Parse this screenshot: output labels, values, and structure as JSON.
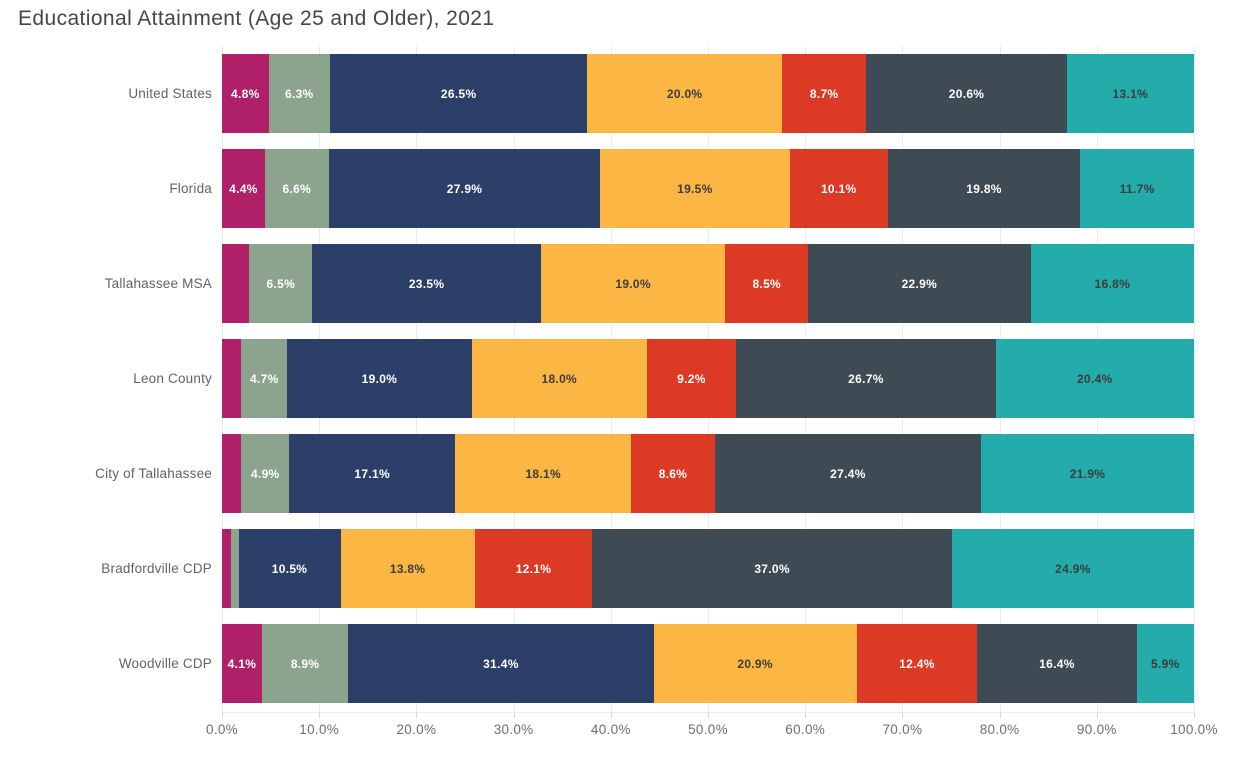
{
  "title": "Educational Attainment (Age 25 and Older), 2021",
  "chart_data": {
    "type": "bar",
    "orientation": "horizontal-stacked",
    "title": "Educational Attainment (Age 25 and Older), 2021",
    "xlabel": "",
    "ylabel": "",
    "xlim": [
      0,
      100
    ],
    "x_ticks": [
      "0.0%",
      "10.0%",
      "20.0%",
      "30.0%",
      "40.0%",
      "50.0%",
      "60.0%",
      "70.0%",
      "80.0%",
      "90.0%",
      "100.0%"
    ],
    "grid": true,
    "legend": "none",
    "categories": [
      "United States",
      "Florida",
      "Tallahassee MSA",
      "Leon County",
      "City of Tallahassee",
      "Bradfordville CDP",
      "Woodville CDP"
    ],
    "series": [
      {
        "name": "segment-1-magenta",
        "color": "#B02069",
        "text_color": "#FFFFFF",
        "values": [
          4.8,
          4.4,
          2.8,
          2.0,
          2.0,
          0.9,
          4.1
        ],
        "labels": [
          "4.8%",
          "4.4%",
          "",
          "",
          "",
          "",
          "4.1%"
        ]
      },
      {
        "name": "segment-2-sage",
        "color": "#8CA48E",
        "text_color": "#FFFFFF",
        "values": [
          6.3,
          6.6,
          6.5,
          4.7,
          4.9,
          0.8,
          8.9
        ],
        "labels": [
          "6.3%",
          "6.6%",
          "6.5%",
          "4.7%",
          "4.9%",
          "",
          "8.9%"
        ]
      },
      {
        "name": "segment-3-navy",
        "color": "#2C3F69",
        "text_color": "#FFFFFF",
        "values": [
          26.5,
          27.9,
          23.5,
          19.0,
          17.1,
          10.5,
          31.4
        ],
        "labels": [
          "26.5%",
          "27.9%",
          "23.5%",
          "19.0%",
          "17.1%",
          "10.5%",
          "31.4%"
        ]
      },
      {
        "name": "segment-4-amber",
        "color": "#FBB643",
        "text_color": "#3C3C3C",
        "values": [
          20.0,
          19.5,
          19.0,
          18.0,
          18.1,
          13.8,
          20.9
        ],
        "labels": [
          "20.0%",
          "19.5%",
          "19.0%",
          "18.0%",
          "18.1%",
          "13.8%",
          "20.9%"
        ]
      },
      {
        "name": "segment-5-red",
        "color": "#DC3A24",
        "text_color": "#FFFFFF",
        "values": [
          8.7,
          10.1,
          8.5,
          9.2,
          8.6,
          12.1,
          12.4
        ],
        "labels": [
          "8.7%",
          "10.1%",
          "8.5%",
          "9.2%",
          "8.6%",
          "12.1%",
          "12.4%"
        ]
      },
      {
        "name": "segment-6-slate",
        "color": "#3E4B55",
        "text_color": "#FFFFFF",
        "values": [
          20.6,
          19.8,
          22.9,
          26.7,
          27.4,
          37.0,
          16.4
        ],
        "labels": [
          "20.6%",
          "19.8%",
          "22.9%",
          "26.7%",
          "27.4%",
          "37.0%",
          "16.4%"
        ]
      },
      {
        "name": "segment-7-teal",
        "color": "#23ACA9",
        "text_color": "#3C3C3C",
        "values": [
          13.1,
          11.7,
          16.8,
          20.4,
          21.9,
          24.9,
          5.9
        ],
        "labels": [
          "13.1%",
          "11.7%",
          "16.8%",
          "20.4%",
          "21.9%",
          "24.9%",
          "5.9%"
        ]
      }
    ]
  },
  "colors": {
    "background": "#FFFFFF",
    "gridline": "#EBEBEB",
    "tick_mark": "#D8D8D8",
    "axis_text": "#6E6E6E",
    "category_text": "#5F6368",
    "title_text": "#42464E"
  }
}
